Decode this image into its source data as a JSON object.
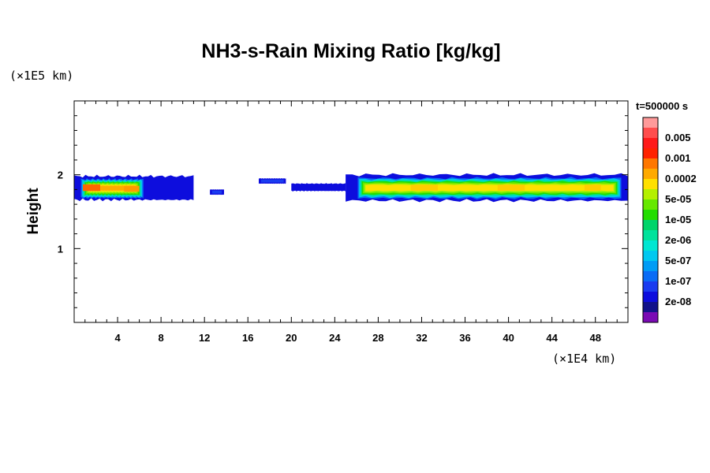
{
  "chart_data": {
    "type": "heatmap",
    "title": "NH3-s-Rain Mixing Ratio [kg/kg]",
    "xlabel": "",
    "ylabel": "Height",
    "x_unit": "(×1E4 km)",
    "y_unit": "(×1E5 km)",
    "time_label": "t=500000 s",
    "xlim": [
      0,
      51
    ],
    "ylim": [
      0,
      3
    ],
    "x_ticks": [
      4,
      8,
      12,
      16,
      20,
      24,
      28,
      32,
      36,
      40,
      44,
      48
    ],
    "x_tick_labels": [
      "4",
      "8",
      "12",
      "16",
      "20",
      "24",
      "28",
      "32",
      "36",
      "40",
      "44",
      "48"
    ],
    "y_ticks": [
      1,
      2
    ],
    "y_tick_labels": [
      "1",
      "2"
    ],
    "colorbar": {
      "levels_top_to_bottom": [
        {
          "color": "#ff9a9a",
          "label": ""
        },
        {
          "color": "#ff4d4d",
          "label": "0.005"
        },
        {
          "color": "#ff1a1a",
          "label": ""
        },
        {
          "color": "#ff2200",
          "label": "0.001"
        },
        {
          "color": "#ff7700",
          "label": ""
        },
        {
          "color": "#ffaa00",
          "label": "0.0002"
        },
        {
          "color": "#ffe000",
          "label": ""
        },
        {
          "color": "#b4f000",
          "label": "5e-05"
        },
        {
          "color": "#66e800",
          "label": ""
        },
        {
          "color": "#22dd00",
          "label": "1e-05"
        },
        {
          "color": "#00d46a",
          "label": ""
        },
        {
          "color": "#00e29c",
          "label": "2e-06"
        },
        {
          "color": "#00e6d2",
          "label": ""
        },
        {
          "color": "#00c8f0",
          "label": "5e-07"
        },
        {
          "color": "#009cf5",
          "label": ""
        },
        {
          "color": "#0a6cf5",
          "label": "1e-07"
        },
        {
          "color": "#1a3cf0",
          "label": ""
        },
        {
          "color": "#0d0ddd",
          "label": "2e-08"
        },
        {
          "color": "#12128a",
          "label": ""
        },
        {
          "color": "#7a0ab4",
          "label": ""
        }
      ]
    },
    "regions": [
      {
        "x_start": 0.0,
        "x_end": 11.0,
        "y_bottom": 1.66,
        "y_top": 1.98,
        "core": [
          0.5,
          6.5
        ],
        "peak": "#ff6600"
      },
      {
        "x_start": 12.5,
        "x_end": 13.8,
        "y_bottom": 1.73,
        "y_top": 1.8,
        "core": null,
        "peak": "#1a3cf0"
      },
      {
        "x_start": 17.0,
        "x_end": 19.5,
        "y_bottom": 1.88,
        "y_top": 1.95,
        "core": null,
        "peak": "#1a3cf0"
      },
      {
        "x_start": 20.0,
        "x_end": 25.0,
        "y_bottom": 1.78,
        "y_top": 1.88,
        "core": null,
        "peak": "#0d0ddd"
      },
      {
        "x_start": 25.0,
        "x_end": 51.0,
        "y_bottom": 1.65,
        "y_top": 2.0,
        "core": [
          26.0,
          50.5
        ],
        "peak": "#ff9a00"
      }
    ],
    "legend_placement": "right",
    "grid": false
  }
}
